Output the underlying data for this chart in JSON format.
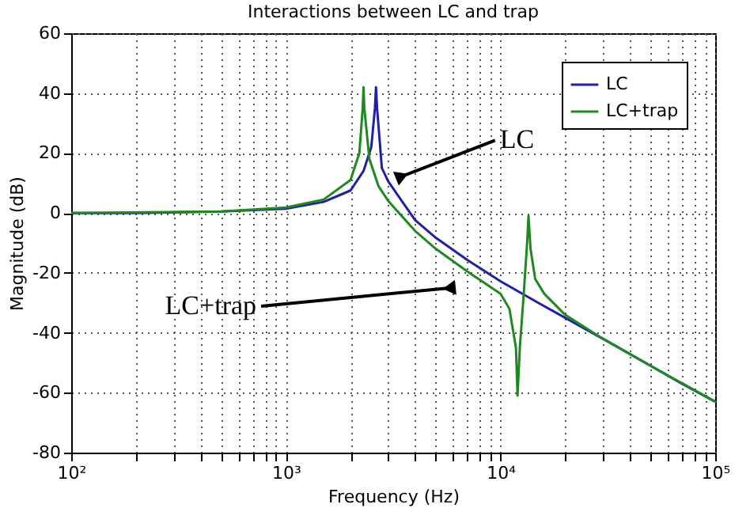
{
  "chart_data": {
    "type": "line",
    "title": "Interactions between LC and trap",
    "xlabel": "Frequency  (Hz)",
    "ylabel": "Magnitude (dB)",
    "log": "x",
    "xlim": [
      100,
      100000
    ],
    "ylim": [
      -80,
      60
    ],
    "xticks": [
      {
        "value": 100,
        "label": "10²"
      },
      {
        "value": 200,
        "label": null
      },
      {
        "value": 300,
        "label": null
      },
      {
        "value": 400,
        "label": null
      },
      {
        "value": 500,
        "label": null
      },
      {
        "value": 600,
        "label": null
      },
      {
        "value": 700,
        "label": null
      },
      {
        "value": 800,
        "label": null
      },
      {
        "value": 900,
        "label": null
      },
      {
        "value": 1000,
        "label": "10³"
      },
      {
        "value": 2000,
        "label": null
      },
      {
        "value": 3000,
        "label": null
      },
      {
        "value": 4000,
        "label": null
      },
      {
        "value": 5000,
        "label": null
      },
      {
        "value": 6000,
        "label": null
      },
      {
        "value": 7000,
        "label": null
      },
      {
        "value": 8000,
        "label": null
      },
      {
        "value": 9000,
        "label": null
      },
      {
        "value": 10000,
        "label": "10⁴"
      },
      {
        "value": 20000,
        "label": null
      },
      {
        "value": 30000,
        "label": null
      },
      {
        "value": 40000,
        "label": null
      },
      {
        "value": 50000,
        "label": null
      },
      {
        "value": 60000,
        "label": null
      },
      {
        "value": 70000,
        "label": null
      },
      {
        "value": 80000,
        "label": null
      },
      {
        "value": 90000,
        "label": null
      },
      {
        "value": 100000,
        "label": "10⁵"
      }
    ],
    "yticks": [
      -80,
      -60,
      -40,
      -20,
      0,
      20,
      40,
      60
    ],
    "grid": true,
    "legend": "top right",
    "line_style": "solid",
    "marker": "none",
    "series": [
      {
        "name": "LC",
        "color": "#1f1fa8",
        "x": [
          100,
          200,
          500,
          1000,
          1500,
          2000,
          2300,
          2500,
          2600,
          2630,
          2660,
          2800,
          3000,
          4000,
          5000,
          7000,
          10000,
          15000,
          20000,
          30000,
          50000,
          70000,
          100000
        ],
        "values": [
          0,
          0,
          0.5,
          1.4,
          3.7,
          7.5,
          14,
          22,
          35,
          42,
          35,
          15,
          10.5,
          -2.4,
          -8.3,
          -15.7,
          -22.8,
          -30,
          -35,
          -42,
          -51,
          -57,
          -63
        ]
      },
      {
        "name": "LC+trap",
        "color": "#1e8a1e",
        "x": [
          100,
          500,
          1000,
          1500,
          2000,
          2200,
          2280,
          2300,
          2320,
          2450,
          2700,
          3000,
          4000,
          5000,
          7000,
          10000,
          11000,
          11800,
          12000,
          12300,
          12800,
          13300,
          13500,
          13800,
          14500,
          16000,
          20000,
          30000,
          50000,
          100000
        ],
        "values": [
          0,
          0.5,
          1.8,
          4.5,
          11,
          20,
          35,
          42,
          35,
          18,
          9,
          4,
          -6,
          -12,
          -19.5,
          -27,
          -32,
          -45,
          -61,
          -45,
          -28,
          -10,
          -1,
          -12,
          -22,
          -27,
          -34,
          -42,
          -51,
          -63
        ]
      }
    ],
    "annotations": [
      {
        "text": "LC",
        "x": 3400,
        "y": 12
      },
      {
        "text": "LC+trap",
        "x": 5900,
        "y": -25
      }
    ]
  }
}
